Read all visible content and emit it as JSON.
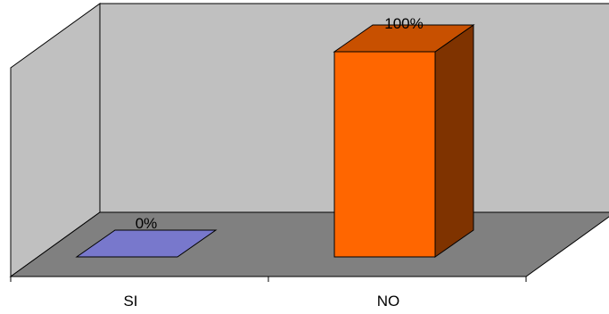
{
  "chart_data": {
    "type": "bar",
    "categories": [
      "SI",
      "NO"
    ],
    "values": [
      0,
      100
    ],
    "data_labels": [
      "0%",
      "100%"
    ],
    "ylim": [
      0,
      100
    ],
    "legend": "none",
    "grid": false,
    "colors": {
      "SI": {
        "front": "#7878cc",
        "top": "#7878cc",
        "side": "#5a5aa0"
      },
      "NO": {
        "front": "#ff6600",
        "top": "#c85000",
        "side": "#7f3300"
      },
      "back_wall": "#c0c0c0",
      "side_wall": "#c0c0c0",
      "floor": "#808080",
      "edges": "#000000"
    }
  }
}
